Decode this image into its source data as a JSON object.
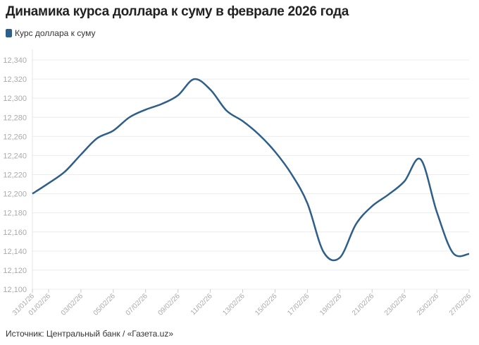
{
  "title": "Динамика курса доллара к суму в феврале 2026 года",
  "source": "Источник: Центральный банк / «Газета.uz»",
  "colors": {
    "line": "#2e5f8a",
    "grid": "#ececec"
  },
  "chart_data": {
    "type": "line",
    "title": "Динамика курса доллара к суму в феврале 2026 года",
    "xlabel": "",
    "ylabel": "",
    "ylim": [
      12100,
      12340
    ],
    "yticks": [
      12100,
      12120,
      12140,
      12160,
      12180,
      12200,
      12220,
      12240,
      12260,
      12280,
      12300,
      12320,
      12340
    ],
    "ytick_labels": [
      "12,100",
      "12,120",
      "12,140",
      "12,160",
      "12,180",
      "12,200",
      "12,220",
      "12,240",
      "12,260",
      "12,280",
      "12,300",
      "12,320",
      "12,340"
    ],
    "xtick_labels": [
      "31/01/26",
      "01/02/26",
      "03/02/26",
      "05/02/26",
      "07/02/26",
      "09/02/26",
      "11/02/26",
      "13/02/26",
      "15/02/26",
      "17/02/26",
      "19/02/26",
      "21/02/26",
      "23/02/26",
      "25/02/26",
      "27/02/26"
    ],
    "xtick_days": [
      0,
      1,
      3,
      5,
      7,
      9,
      11,
      13,
      15,
      17,
      19,
      21,
      23,
      25,
      27
    ],
    "grid": true,
    "legend_placement": "top-left",
    "series": [
      {
        "name": "Курс доллара к суму",
        "x": [
          "31/01",
          "01/02",
          "02/02",
          "03/02",
          "04/02",
          "05/02",
          "06/02",
          "07/02",
          "08/02",
          "09/02",
          "10/02",
          "11/02",
          "12/02",
          "13/02",
          "14/02",
          "15/02",
          "16/02",
          "17/02",
          "18/02",
          "19/02",
          "20/02",
          "21/02",
          "22/02",
          "23/02",
          "24/02",
          "25/02",
          "26/02",
          "27/02"
        ],
        "values": [
          12200,
          12211,
          12223,
          12241,
          12258,
          12266,
          12280,
          12288,
          12294,
          12303,
          12320,
          12309,
          12287,
          12276,
          12262,
          12244,
          12221,
          12190,
          12139,
          12133,
          12168,
          12187,
          12199,
          12213,
          12236,
          12181,
          12138,
          12137
        ]
      }
    ]
  }
}
